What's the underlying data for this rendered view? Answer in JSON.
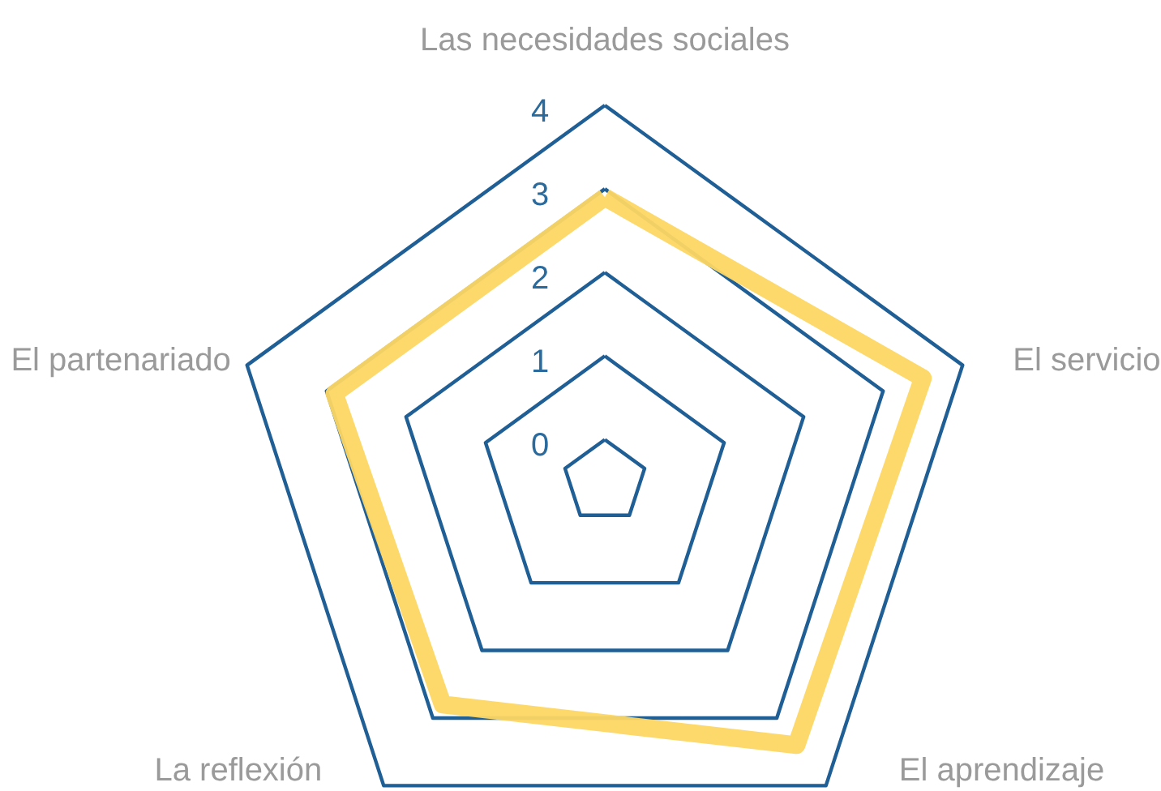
{
  "chart_data": {
    "type": "radar",
    "categories": [
      "Las necesidades sociales",
      "El servicio",
      "El aprendizaje",
      "La reflexión",
      "El partenariado"
    ],
    "series": [
      {
        "color": "#fdd663",
        "values": [
          2.9,
          3.5,
          3.4,
          2.8,
          2.9
        ]
      }
    ],
    "ylim": [
      -0.5,
      4
    ],
    "yticks": [
      0,
      1,
      2,
      3,
      4
    ],
    "grid": true
  }
}
